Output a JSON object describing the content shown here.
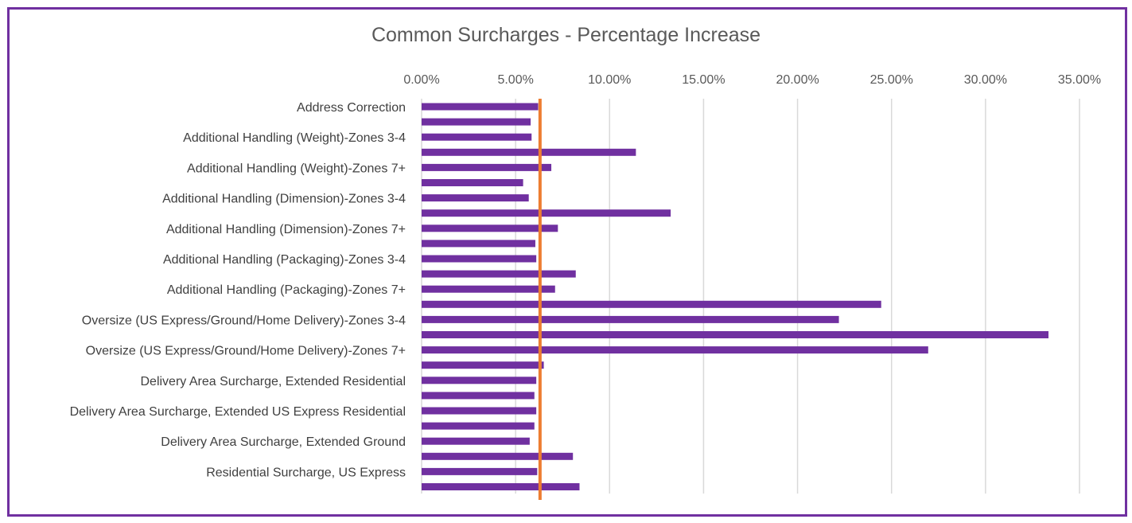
{
  "chart_data": {
    "type": "bar",
    "orientation": "horizontal",
    "title": "Common Surcharges - Percentage Increase",
    "xlim": [
      0,
      35
    ],
    "x_ticks": [
      "0.00%",
      "5.00%",
      "10.00%",
      "15.00%",
      "20.00%",
      "25.00%",
      "30.00%",
      "35.00%"
    ],
    "x_axis_position": "top",
    "grid": true,
    "categories": [
      "Address Correction",
      "",
      "Additional Handling (Weight)-Zones 3-4",
      "",
      "Additional Handling (Weight)-Zones 7+",
      "",
      "Additional Handling (Dimension)-Zones 3-4",
      "",
      "Additional Handling (Dimension)-Zones 7+",
      "",
      "Additional Handling (Packaging)-Zones 3-4",
      "",
      "Additional Handling (Packaging)-Zones 7+",
      "",
      "Oversize (US Express/Ground/Home Delivery)-Zones 3-4",
      "",
      "Oversize (US Express/Ground/Home Delivery)-Zones 7+",
      "",
      "Delivery Area Surcharge, Extended Residential",
      "",
      "Delivery Area Surcharge, Extended US Express Residential",
      "",
      "Delivery Area Surcharge, Extended Ground",
      "",
      "Residential Surcharge, US Express",
      ""
    ],
    "values": [
      6.2,
      5.8,
      5.85,
      11.4,
      6.9,
      5.4,
      5.7,
      13.25,
      7.25,
      6.05,
      6.1,
      8.2,
      7.1,
      24.45,
      22.2,
      33.35,
      26.95,
      6.5,
      6.1,
      6.0,
      6.1,
      6.0,
      5.75,
      8.05,
      6.15,
      8.4
    ],
    "reference_line": {
      "value": 6.3,
      "color": "#ed7d31"
    },
    "colors": {
      "bar": "#7030a0",
      "grid": "#d9d9d9",
      "frame": "#7030a0"
    }
  }
}
